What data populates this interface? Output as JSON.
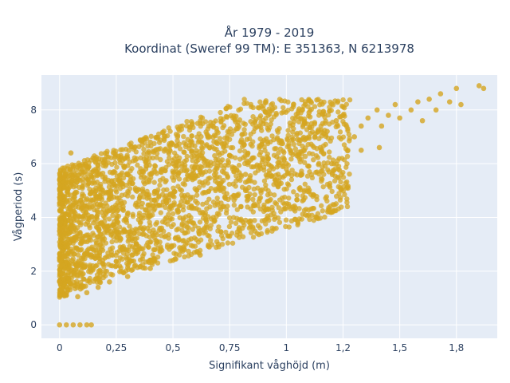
{
  "chart_data": {
    "type": "scatter",
    "title_lines": [
      "År 1979 - 2019",
      "Koordinat (Sweref 99 TM): E 351363, N 6213978"
    ],
    "xlabel": "Signifikant våghöjd (m)",
    "ylabel": "Vågperiod (s)",
    "xlim": [
      -0.08,
      1.93
    ],
    "ylim": [
      -0.5,
      9.3
    ],
    "x_ticks": [
      {
        "value": 0,
        "label": "0"
      },
      {
        "value": 0.25,
        "label": "0,25"
      },
      {
        "value": 0.5,
        "label": "0,5"
      },
      {
        "value": 0.75,
        "label": "0,75"
      },
      {
        "value": 1.0,
        "label": "1"
      },
      {
        "value": 1.25,
        "label": "1,2"
      },
      {
        "value": 1.5,
        "label": "1,5"
      },
      {
        "value": 1.75,
        "label": "1,8"
      }
    ],
    "y_ticks": [
      {
        "value": 0,
        "label": "0"
      },
      {
        "value": 2,
        "label": "2"
      },
      {
        "value": 4,
        "label": "4"
      },
      {
        "value": 6,
        "label": "6"
      },
      {
        "value": 8,
        "label": "8"
      }
    ],
    "grid": true,
    "background": "#e5ecf6",
    "marker_color": "#D4A520",
    "series": [
      {
        "points": [
          [
            0.0,
            0.0
          ],
          [
            0.03,
            0.0
          ],
          [
            0.06,
            0.0
          ],
          [
            0.09,
            0.0
          ],
          [
            0.12,
            0.0
          ],
          [
            0.14,
            0.0
          ],
          [
            0.0,
            1.6
          ],
          [
            0.0,
            2.5
          ],
          [
            0.01,
            3.5
          ],
          [
            0.01,
            4.5
          ],
          [
            0.02,
            5.5
          ],
          [
            0.05,
            6.4
          ],
          [
            0.03,
            1.1
          ],
          [
            0.05,
            2.0
          ],
          [
            0.05,
            3.2
          ],
          [
            0.05,
            4.2
          ],
          [
            0.05,
            5.2
          ],
          [
            0.06,
            5.9
          ],
          [
            0.08,
            1.05
          ],
          [
            0.08,
            2.2
          ],
          [
            0.09,
            3.4
          ],
          [
            0.1,
            4.5
          ],
          [
            0.1,
            5.6
          ],
          [
            0.12,
            5.9
          ],
          [
            0.12,
            1.2
          ],
          [
            0.14,
            2.6
          ],
          [
            0.15,
            3.8
          ],
          [
            0.16,
            4.8
          ],
          [
            0.17,
            5.8
          ],
          [
            0.2,
            6.1
          ],
          [
            0.17,
            1.4
          ],
          [
            0.19,
            2.4
          ],
          [
            0.2,
            3.6
          ],
          [
            0.22,
            4.7
          ],
          [
            0.24,
            5.7
          ],
          [
            0.27,
            6.3
          ],
          [
            0.22,
            1.6
          ],
          [
            0.25,
            2.2
          ],
          [
            0.27,
            3.2
          ],
          [
            0.28,
            4.4
          ],
          [
            0.3,
            5.6
          ],
          [
            0.33,
            6.6
          ],
          [
            0.3,
            1.8
          ],
          [
            0.32,
            2.6
          ],
          [
            0.33,
            3.4
          ],
          [
            0.35,
            4.6
          ],
          [
            0.38,
            5.8
          ],
          [
            0.4,
            6.8
          ],
          [
            0.4,
            2.1
          ],
          [
            0.42,
            2.8
          ],
          [
            0.45,
            3.6
          ],
          [
            0.47,
            4.8
          ],
          [
            0.5,
            6.0
          ],
          [
            0.52,
            7.0
          ],
          [
            0.5,
            2.4
          ],
          [
            0.55,
            2.8
          ],
          [
            0.58,
            3.2
          ],
          [
            0.6,
            4.6
          ],
          [
            0.63,
            6.2
          ],
          [
            0.65,
            7.1
          ],
          [
            0.62,
            2.6
          ],
          [
            0.66,
            2.9
          ],
          [
            0.7,
            3.0
          ],
          [
            0.72,
            4.4
          ],
          [
            0.75,
            6.3
          ],
          [
            0.78,
            7.3
          ],
          [
            0.75,
            3.3
          ],
          [
            0.8,
            4.4
          ],
          [
            0.82,
            5.0
          ],
          [
            0.85,
            6.2
          ],
          [
            0.88,
            7.4
          ],
          [
            0.92,
            7.8
          ],
          [
            0.95,
            5.4
          ],
          [
            1.0,
            6.0
          ],
          [
            1.02,
            6.4
          ],
          [
            1.05,
            6.9
          ],
          [
            1.08,
            7.5
          ],
          [
            1.1,
            7.9
          ],
          [
            0.77,
            4.8
          ],
          [
            0.92,
            6.2
          ],
          [
            1.15,
            6.6
          ],
          [
            1.18,
            7.2
          ],
          [
            1.22,
            7.6
          ],
          [
            1.25,
            7.8
          ],
          [
            1.3,
            7.0
          ],
          [
            1.33,
            7.4
          ],
          [
            1.36,
            7.7
          ],
          [
            1.4,
            8.0
          ],
          [
            1.42,
            7.4
          ],
          [
            1.45,
            7.8
          ],
          [
            1.48,
            8.2
          ],
          [
            1.5,
            7.7
          ],
          [
            1.55,
            8.0
          ],
          [
            1.58,
            8.3
          ],
          [
            1.6,
            7.6
          ],
          [
            1.63,
            8.4
          ],
          [
            1.66,
            8.0
          ],
          [
            1.68,
            8.6
          ],
          [
            1.72,
            8.3
          ],
          [
            1.75,
            8.8
          ],
          [
            1.77,
            8.2
          ],
          [
            1.85,
            8.9
          ],
          [
            1.87,
            8.8
          ],
          [
            1.41,
            6.6
          ],
          [
            1.33,
            6.5
          ],
          [
            1.2,
            6.0
          ],
          [
            1.0,
            5.8
          ],
          [
            0.88,
            4.6
          ],
          [
            0.82,
            5.6
          ]
        ]
      }
    ]
  }
}
